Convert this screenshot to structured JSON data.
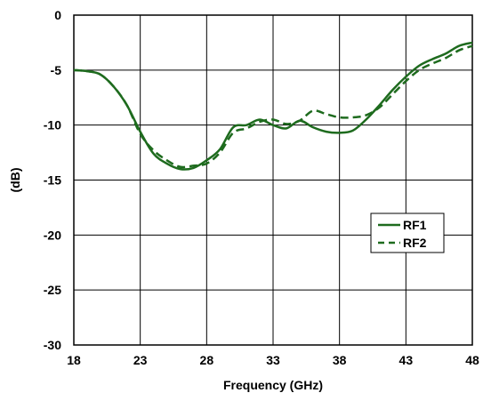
{
  "chart_data": {
    "type": "line",
    "title": "",
    "xlabel": "Frequency (GHz)",
    "ylabel": "(dB)",
    "xlim": [
      18,
      48
    ],
    "ylim": [
      -30,
      0
    ],
    "xticks": [
      18,
      23,
      28,
      33,
      38,
      43,
      48
    ],
    "yticks": [
      0,
      -5,
      -10,
      -15,
      -20,
      -25,
      -30
    ],
    "grid": true,
    "legend_position": "right",
    "series": [
      {
        "name": "RF1",
        "style": "solid",
        "color": "#1e6b1e",
        "x": [
          18,
          19,
          20,
          21,
          22,
          23,
          24,
          25,
          26,
          27,
          28,
          29,
          30,
          31,
          32,
          33,
          34,
          35,
          36,
          37,
          38,
          39,
          40,
          41,
          42,
          43,
          44,
          45,
          46,
          47,
          48
        ],
        "y": [
          -5.0,
          -5.1,
          -5.4,
          -6.5,
          -8.2,
          -10.6,
          -12.6,
          -13.5,
          -14.0,
          -13.9,
          -13.2,
          -12.2,
          -10.2,
          -10.0,
          -9.5,
          -10.0,
          -10.3,
          -9.6,
          -10.2,
          -10.6,
          -10.7,
          -10.5,
          -9.5,
          -8.2,
          -6.8,
          -5.6,
          -4.6,
          -4.0,
          -3.5,
          -2.8,
          -2.5
        ]
      },
      {
        "name": "RF2",
        "style": "dashed",
        "color": "#1e6b1e",
        "x": [
          18,
          19,
          20,
          21,
          22,
          23,
          24,
          25,
          26,
          27,
          28,
          29,
          30,
          31,
          32,
          33,
          34,
          35,
          36,
          37,
          38,
          39,
          40,
          41,
          42,
          43,
          44,
          45,
          46,
          47,
          48
        ],
        "y": [
          -5.0,
          -5.1,
          -5.4,
          -6.5,
          -8.2,
          -10.8,
          -12.3,
          -13.2,
          -13.8,
          -13.7,
          -13.5,
          -12.5,
          -10.7,
          -10.3,
          -9.7,
          -9.5,
          -9.9,
          -9.6,
          -8.7,
          -9.0,
          -9.3,
          -9.3,
          -9.1,
          -8.4,
          -7.2,
          -6.0,
          -5.0,
          -4.4,
          -3.9,
          -3.2,
          -2.8
        ]
      }
    ]
  }
}
